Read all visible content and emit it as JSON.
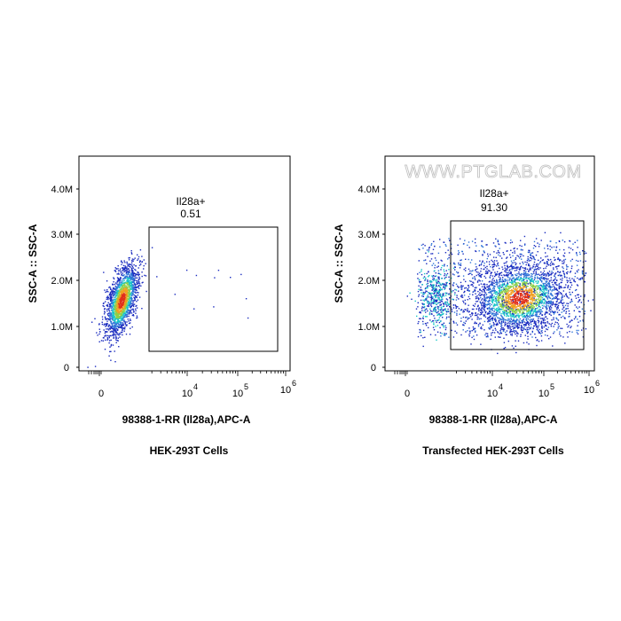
{
  "colors": {
    "density_low": "#1a2bbf",
    "density_mid": "#19c7c7",
    "density_high": "#f0a020",
    "density_peak": "#e0301a",
    "watermark": "#c8c8c8",
    "frame": "#000000",
    "gate": "#000000"
  },
  "chart_data": [
    {
      "type": "scatter",
      "subtype": "flow-cytometry-density",
      "panel": "HEK-293T Cells",
      "xlabel": "98388-1-RR (Il28a),APC-A",
      "ylabel": "SSC-A :: SSC-A",
      "x_scale": "biexponential",
      "x_ticks": [
        "0",
        "10",
        "10",
        "10"
      ],
      "x_tick_exponents": [
        "",
        "4",
        "5",
        "6"
      ],
      "y_ticks": [
        "0",
        "1.0M",
        "2.0M",
        "3.0M",
        "4.0M"
      ],
      "ylim": [
        0,
        4400000
      ],
      "gate": {
        "label": "Il28a+",
        "percent": "0.51",
        "x_range": [
          2000,
          600000
        ],
        "y_range": [
          450000,
          3150000
        ]
      },
      "population": {
        "x_center": 0,
        "y_center": 1350000,
        "shape": "compact diagonal ellipse"
      }
    },
    {
      "type": "scatter",
      "subtype": "flow-cytometry-density",
      "panel": "Transfected HEK-293T Cells",
      "xlabel": "98388-1-RR (Il28a),APC-A",
      "ylabel": "SSC-A :: SSC-A",
      "x_scale": "biexponential",
      "x_ticks": [
        "0",
        "10",
        "10",
        "10"
      ],
      "x_tick_exponents": [
        "",
        "4",
        "5",
        "6"
      ],
      "y_ticks": [
        "0",
        "1.0M",
        "2.0M",
        "3.0M",
        "4.0M"
      ],
      "ylim": [
        0,
        4400000
      ],
      "watermark": "WWW.PTGLAB.COM",
      "gate": {
        "label": "Il28a+",
        "percent": "91.30",
        "x_range": [
          2000,
          600000
        ],
        "y_range": [
          500000,
          3300000
        ]
      },
      "population": {
        "x_center": 30000,
        "y_center": 1500000,
        "shape": "broad cloud"
      }
    }
  ]
}
